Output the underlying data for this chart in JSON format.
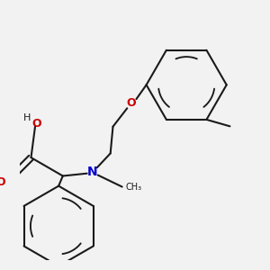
{
  "background_color": "#f2f2f2",
  "bond_color": "#1a1a1a",
  "oxygen_color": "#cc0000",
  "nitrogen_color": "#0000cc",
  "bond_width": 1.5,
  "figsize": [
    3.0,
    3.0
  ],
  "dpi": 100,
  "xlim": [
    0,
    300
  ],
  "ylim": [
    0,
    300
  ]
}
